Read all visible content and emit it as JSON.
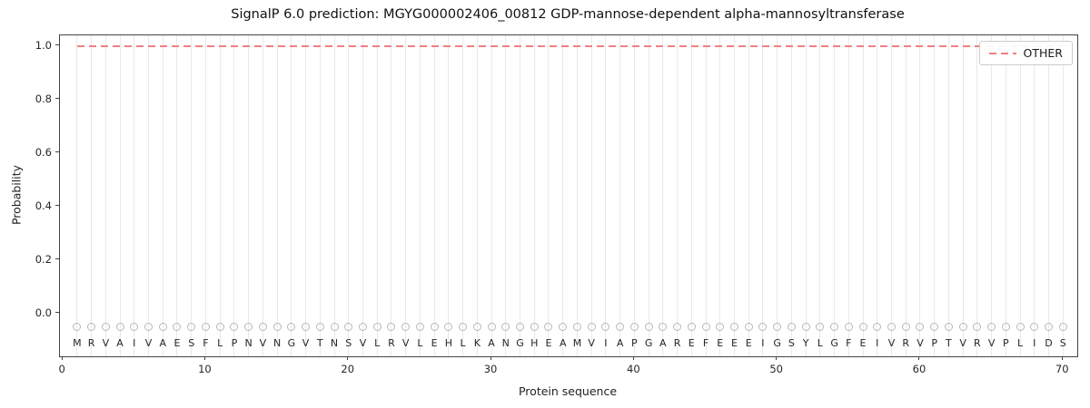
{
  "chart_data": {
    "type": "line",
    "title": "SignalP 6.0 prediction: MGYG000002406_00812 GDP-mannose-dependent alpha-mannosyltransferase",
    "xlabel": "Protein sequence",
    "ylabel": "Probability",
    "xlim": [
      -0.2,
      71.0
    ],
    "ylim": [
      -0.16,
      1.04
    ],
    "xticks": [
      0,
      10,
      20,
      30,
      40,
      50,
      60,
      70
    ],
    "yticks": [
      0.0,
      0.2,
      0.4,
      0.6,
      0.8,
      1.0
    ],
    "grid": "vertical-line-per-residue",
    "sequence": "MRVAIVAESFLPNVNGVTNSVLRVLEHLKANGHEAMVIAPGAREFEEEIGSYLGFEIVRVPTVRVPLIDS",
    "series": [
      {
        "name": "OTHER",
        "color": "#f08080",
        "style": "dashed",
        "x_start": 1,
        "x_end": 70,
        "values": [
          1.0,
          1.0,
          1.0,
          1.0,
          1.0,
          1.0,
          1.0,
          1.0,
          1.0,
          1.0,
          1.0,
          1.0,
          1.0,
          1.0,
          1.0,
          1.0,
          1.0,
          1.0,
          1.0,
          1.0,
          1.0,
          1.0,
          1.0,
          1.0,
          1.0,
          1.0,
          1.0,
          1.0,
          1.0,
          1.0,
          1.0,
          1.0,
          1.0,
          1.0,
          1.0,
          1.0,
          1.0,
          1.0,
          1.0,
          1.0,
          1.0,
          1.0,
          1.0,
          1.0,
          1.0,
          1.0,
          1.0,
          1.0,
          1.0,
          1.0,
          1.0,
          1.0,
          1.0,
          1.0,
          1.0,
          1.0,
          1.0,
          1.0,
          1.0,
          1.0,
          1.0,
          1.0,
          1.0,
          1.0,
          1.0,
          1.0,
          1.0,
          1.0,
          1.0,
          1.0
        ]
      }
    ],
    "residue_markers": {
      "shape": "circle",
      "y": -0.051,
      "color": "#b8b8b8"
    },
    "residue_letters_y": -0.112,
    "legend": {
      "position": "upper right",
      "entries": [
        {
          "label": "OTHER",
          "color": "#f08080",
          "dash": true
        }
      ]
    }
  }
}
